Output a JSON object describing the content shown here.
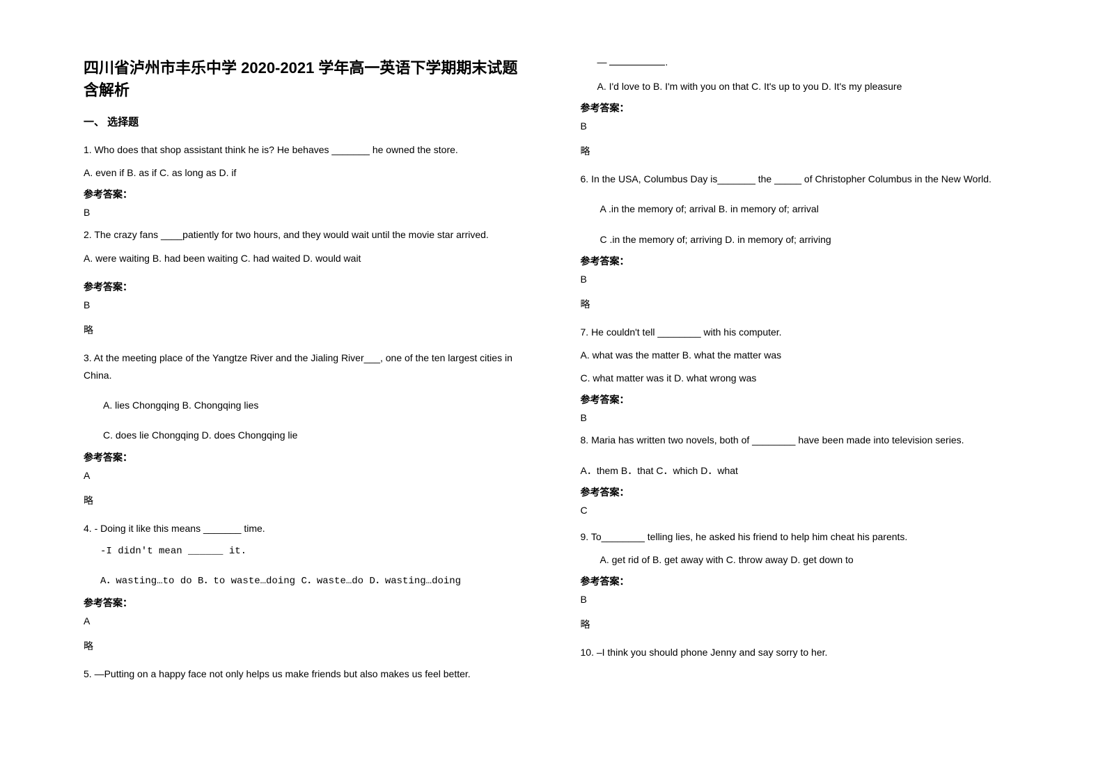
{
  "title": "四川省泸州市丰乐中学 2020-2021 学年高一英语下学期期末试题含解析",
  "section1": "一、 选择题",
  "q1": {
    "text": "1. Who does that shop assistant think he is? He behaves _______ he owned the store.",
    "opts": "   A. even if        B. as if             C. as long as         D. if",
    "ansLabel": "参考答案：",
    "ans": "B"
  },
  "q2": {
    "text": "2. The crazy fans ____patiently for two hours, and they would wait until the movie star arrived.",
    "opts": "A.    were waiting B. had been waiting C. had waited D. would wait",
    "ansLabel": "参考答案：",
    "ans": "B",
    "skip": "略"
  },
  "q3": {
    "text": "3. At the meeting place of the Yangtze River and the Jialing River___, one of the ten largest cities in China.",
    "opts1": "A. lies Chongqing           B. Chongqing lies",
    "opts2": "C. does lie Chongqing        D. does Chongqing lie",
    "ansLabel": "参考答案：",
    "ans": "A",
    "skip": "略"
  },
  "q4": {
    "text": "4. - Doing it like this means _______ time.",
    "text2": "-I didn't mean ______ it.",
    "opts": "A．wasting…to do    B．to waste…doing        C．waste…do          D．wasting…doing",
    "ansLabel": "参考答案：",
    "ans": "A",
    "skip": "略"
  },
  "q5": {
    "text": "5. —Putting on a happy face not only helps us make friends but also makes us feel better.",
    "dash": "— __________.",
    "opts": "A. I'd love to     B. I'm with you on that    C. It's up to you    D. It's my pleasure",
    "ansLabel": "参考答案：",
    "ans": "B",
    "skip": "略"
  },
  "q6": {
    "text": "6. In the USA, Columbus Day is_______ the _____ of Christopher Columbus in the New World.",
    "opts1": "A .in the memory of; arrival                B. in memory of; arrival",
    "opts2": "C .in the memory of; arriving               D. in memory of; arriving",
    "ansLabel": "参考答案：",
    "ans": "B",
    "skip": "略"
  },
  "q7": {
    "text": "7. He couldn't tell ________ with his computer.",
    "opts1": "A. what was the matter                 B. what the matter was",
    "opts2": "C. what matter was it       D. what wrong was",
    "ansLabel": "参考答案：",
    "ans": "B"
  },
  "q8": {
    "text": "8. Maria has written two novels, both of ________ have been made into television series.",
    "opts": "A．them                    B．that                         C．which                   D．what",
    "ansLabel": "参考答案：",
    "ans": "C"
  },
  "q9": {
    "text": "9. To________ telling lies, he asked his friend to help him cheat his parents.",
    "opts": "A. get rid of           B. get away with            C. throw away                       D. get down to",
    "ansLabel": "参考答案：",
    "ans": "B",
    "skip": "略"
  },
  "q10": {
    "text": "10. –I think you should phone Jenny and say sorry to her."
  }
}
